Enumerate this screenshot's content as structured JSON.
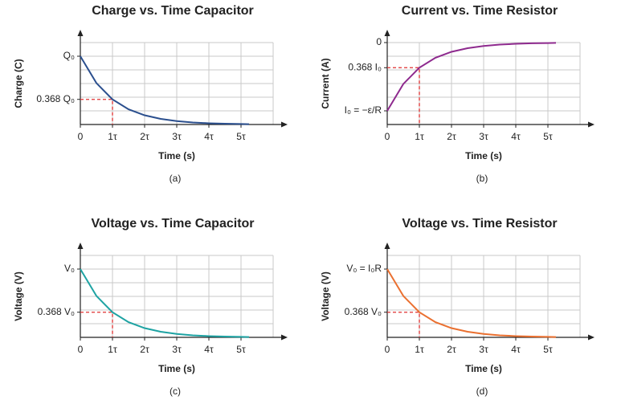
{
  "chart_data": [
    {
      "type": "line",
      "title": "Charge vs. Time Capacitor",
      "xlabel": "Time (s)",
      "ylabel": "Charge (C)",
      "caption": "(a)",
      "color": "#2b4f8e",
      "x": [
        0,
        0.5,
        1,
        1.5,
        2,
        2.5,
        3,
        3.5,
        4,
        4.5,
        5,
        5.25
      ],
      "values": [
        1,
        0.607,
        0.368,
        0.223,
        0.135,
        0.082,
        0.05,
        0.03,
        0.018,
        0.011,
        0.007,
        0.005
      ],
      "xlim": [
        0,
        6
      ],
      "ylim": [
        0,
        1.2
      ],
      "xticks": [
        0,
        {
          "value": 1,
          "label": "1τ"
        },
        {
          "value": 2,
          "label": "2τ"
        },
        {
          "value": 3,
          "label": "3τ"
        },
        {
          "value": 4,
          "label": "4τ"
        },
        {
          "value": 5,
          "label": "5τ"
        }
      ],
      "yticks": [
        {
          "value": 1,
          "label": "Q₀"
        },
        {
          "value": 0.368,
          "label": "0.368 Q₀"
        }
      ],
      "xgrid": [
        1,
        2,
        3,
        4,
        5,
        6
      ],
      "ygrid": [
        0.2,
        0.4,
        0.6,
        0.8,
        1,
        1.2
      ],
      "guide": {
        "x": 1,
        "y": 0.368,
        "color": "#e03030"
      }
    },
    {
      "type": "line",
      "title": "Current vs. Time Resistor",
      "xlabel": "Time (s)",
      "ylabel": "Current (A)",
      "caption": "(b)",
      "color": "#8e2a8e",
      "x": [
        0,
        0.5,
        1,
        1.5,
        2,
        2.5,
        3,
        3.5,
        4,
        4.5,
        5,
        5.25
      ],
      "values": [
        -1,
        -0.607,
        -0.368,
        -0.223,
        -0.135,
        -0.082,
        -0.05,
        -0.03,
        -0.018,
        -0.011,
        -0.007,
        -0.005
      ],
      "xlim": [
        0,
        6
      ],
      "ylim": [
        -1.2,
        0
      ],
      "xticks": [
        0,
        {
          "value": 1,
          "label": "1τ"
        },
        {
          "value": 2,
          "label": "2τ"
        },
        {
          "value": 3,
          "label": "3τ"
        },
        {
          "value": 4,
          "label": "4τ"
        },
        {
          "value": 5,
          "label": "5τ"
        }
      ],
      "yticks": [
        0,
        {
          "value": -0.368,
          "label": "0.368 I₀"
        },
        {
          "value": -1,
          "label": "I₀ = −ε/R"
        }
      ],
      "xgrid": [
        1,
        2,
        3,
        4,
        5,
        6
      ],
      "ygrid": [
        -1,
        -0.8,
        -0.6,
        -0.4,
        -0.2,
        0
      ],
      "guide": {
        "x": 1,
        "y": -0.368,
        "color": "#e03030"
      }
    },
    {
      "type": "line",
      "title": "Voltage vs. Time Capacitor",
      "xlabel": "Time (s)",
      "ylabel": "Voltage (V)",
      "caption": "(c)",
      "color": "#1ea3a3",
      "x": [
        0,
        0.5,
        1,
        1.5,
        2,
        2.5,
        3,
        3.5,
        4,
        4.5,
        5,
        5.25
      ],
      "values": [
        1,
        0.607,
        0.368,
        0.223,
        0.135,
        0.082,
        0.05,
        0.03,
        0.018,
        0.011,
        0.007,
        0.005
      ],
      "xlim": [
        0,
        6
      ],
      "ylim": [
        0,
        1.2
      ],
      "xticks": [
        0,
        {
          "value": 1,
          "label": "1τ"
        },
        {
          "value": 2,
          "label": "2τ"
        },
        {
          "value": 3,
          "label": "3τ"
        },
        {
          "value": 4,
          "label": "4τ"
        },
        {
          "value": 5,
          "label": "5τ"
        }
      ],
      "yticks": [
        {
          "value": 1,
          "label": "V₀"
        },
        {
          "value": 0.368,
          "label": "0.368 V₀"
        }
      ],
      "xgrid": [
        1,
        2,
        3,
        4,
        5,
        6
      ],
      "ygrid": [
        0.2,
        0.4,
        0.6,
        0.8,
        1,
        1.2
      ],
      "guide": {
        "x": 1,
        "y": 0.368,
        "color": "#e03030"
      }
    },
    {
      "type": "line",
      "title": "Voltage vs. Time Resistor",
      "xlabel": "Time (s)",
      "ylabel": "Voltage (V)",
      "caption": "(d)",
      "color": "#ea7030",
      "x": [
        0,
        0.5,
        1,
        1.5,
        2,
        2.5,
        3,
        3.5,
        4,
        4.5,
        5,
        5.25
      ],
      "values": [
        1,
        0.607,
        0.368,
        0.223,
        0.135,
        0.082,
        0.05,
        0.03,
        0.018,
        0.011,
        0.007,
        0.005
      ],
      "xlim": [
        0,
        6
      ],
      "ylim": [
        0,
        1.2
      ],
      "xticks": [
        0,
        {
          "value": 1,
          "label": "1τ"
        },
        {
          "value": 2,
          "label": "2τ"
        },
        {
          "value": 3,
          "label": "3τ"
        },
        {
          "value": 4,
          "label": "4τ"
        },
        {
          "value": 5,
          "label": "5τ"
        }
      ],
      "yticks": [
        {
          "value": 1,
          "label": "V₀ = I₀R"
        },
        {
          "value": 0.368,
          "label": "0.368 V₀"
        }
      ],
      "xgrid": [
        1,
        2,
        3,
        4,
        5,
        6
      ],
      "ygrid": [
        0.2,
        0.4,
        0.6,
        0.8,
        1,
        1.2
      ],
      "guide": {
        "x": 1,
        "y": 0.368,
        "color": "#e03030"
      }
    }
  ]
}
